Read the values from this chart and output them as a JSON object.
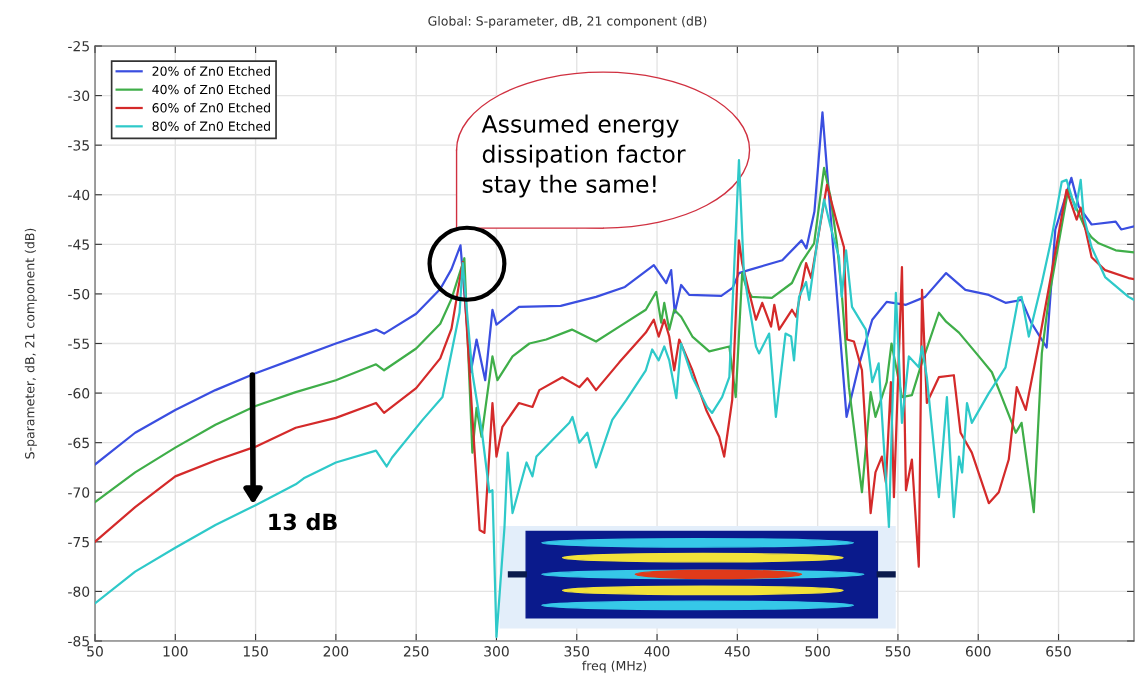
{
  "chart_data": {
    "type": "line",
    "title": "Global: S-parameter, dB, 21 component (dB)",
    "xlabel": "freq (MHz)",
    "ylabel": "S-parameter, dB, 21 component (dB)",
    "xlim": [
      50,
      697
    ],
    "ylim": [
      -85,
      -25
    ],
    "xticks": [
      50,
      100,
      150,
      200,
      250,
      300,
      350,
      400,
      450,
      500,
      550,
      600,
      650
    ],
    "yticks": [
      -85,
      -80,
      -75,
      -70,
      -65,
      -60,
      -55,
      -50,
      -45,
      -40,
      -35,
      -30,
      -25
    ],
    "grid": true,
    "legend": "top left",
    "marker": "none",
    "line_style": "solid",
    "annotations": [
      "Assumed energy\ndissipation factor\nstay the same!",
      {
        "text": "13 dB",
        "x": 150,
        "y": -71.5
      }
    ],
    "series": [
      {
        "name": "20% of Zn0 Etched",
        "color": "#3a4ee0",
        "x": [
          50,
          75,
          100,
          125,
          150,
          175,
          200,
          225,
          230,
          250,
          265,
          272,
          277.6,
          284,
          287.6,
          293,
          297.5,
          300,
          314,
          340,
          362,
          380,
          398,
          405.7,
          408.8,
          411,
          415,
          420,
          440,
          447,
          451,
          457,
          478,
          490,
          493,
          498,
          503,
          518,
          526,
          534,
          543,
          555,
          567,
          580,
          592,
          606.6,
          617,
          627,
          633,
          642.6,
          648,
          658,
          662.6,
          670.6,
          685.6,
          689,
          697
        ],
        "values": [
          -67.2,
          -64,
          -61.7,
          -59.7,
          -58,
          -56.5,
          -55,
          -53.6,
          -54,
          -52,
          -49.5,
          -47.5,
          -45.1,
          -57.9,
          -54.6,
          -58.7,
          -51.6,
          -53.1,
          -51.3,
          -51.2,
          -50.3,
          -49.3,
          -47.1,
          -48.9,
          -47.6,
          -51.9,
          -49.1,
          -50.1,
          -50.2,
          -49.4,
          -47.9,
          -47.6,
          -46.6,
          -44.6,
          -45.4,
          -41.7,
          -31.7,
          -62.4,
          -57,
          -52.6,
          -50.8,
          -51.1,
          -50.3,
          -47.9,
          -49.6,
          -50.1,
          -50.9,
          -50.6,
          -52.9,
          -55.4,
          -43.5,
          -38.3,
          -41.2,
          -43,
          -42.7,
          -43.5,
          -43.2
        ]
      },
      {
        "name": "40% of Zn0 Etched",
        "color": "#3fae49",
        "x": [
          50,
          75,
          100,
          125,
          150,
          175,
          200,
          225,
          230,
          250,
          265,
          272,
          280,
          285,
          287.6,
          290.7,
          297.5,
          300.6,
          310,
          320.5,
          331,
          347,
          362,
          376.5,
          393,
          399.5,
          402.6,
          404.5,
          407.6,
          410.7,
          415,
          422,
          432.5,
          445,
          449,
          453,
          455.5,
          459,
          471.5,
          484,
          489.6,
          497.8,
          504,
          508,
          512,
          515,
          519.5,
          527.6,
          533,
          536,
          543,
          546,
          552.5,
          558.7,
          564,
          575.5,
          580,
          588,
          600.4,
          608.5,
          614.7,
          623.4,
          627,
          634.6,
          639.6,
          644,
          656,
          667,
          670.6,
          675,
          685.6,
          697
        ],
        "values": [
          -71,
          -68,
          -65.5,
          -63.2,
          -61.3,
          -59.9,
          -58.7,
          -57.1,
          -57.7,
          -55.5,
          -53,
          -50.5,
          -46.4,
          -66,
          -61.5,
          -64.4,
          -56.3,
          -58.7,
          -56.3,
          -55,
          -54.6,
          -53.6,
          -54.8,
          -53.3,
          -51.6,
          -49.8,
          -52.9,
          -50.9,
          -53.6,
          -51.6,
          -52.3,
          -54.3,
          -55.8,
          -55.3,
          -60.4,
          -47.9,
          -49.3,
          -50.3,
          -50.4,
          -48.9,
          -46.9,
          -44.9,
          -37.3,
          -40.2,
          -44.9,
          -49.9,
          -59.4,
          -70,
          -59.9,
          -62.4,
          -58.9,
          -55,
          -60.4,
          -60.2,
          -57.4,
          -51.9,
          -52.8,
          -53.9,
          -56.3,
          -57.9,
          -60.4,
          -64,
          -63,
          -72,
          -56,
          -50.4,
          -39.5,
          -43.5,
          -44.3,
          -44.9,
          -45.6,
          -45.8
        ]
      },
      {
        "name": "60% of Zn0 Etched",
        "color": "#d42a2a",
        "x": [
          50,
          75,
          100,
          125,
          150,
          175,
          200,
          225,
          230,
          250,
          265,
          272,
          279,
          285,
          289.5,
          292.5,
          297.5,
          300,
          303.7,
          314,
          322.4,
          326.7,
          341,
          351.6,
          356.6,
          362,
          376.5,
          393,
          398,
          401,
          404.5,
          407.6,
          410.7,
          413.8,
          422,
          430.6,
          438.7,
          441.8,
          446.8,
          451,
          453,
          457,
          461.6,
          465.5,
          471,
          473,
          476,
          484,
          486.6,
          492.8,
          496,
          505.8,
          512,
          516.4,
          518.3,
          522.6,
          527.6,
          533,
          536,
          540,
          542.5,
          545.6,
          547.5,
          552.5,
          555,
          558.7,
          563,
          565,
          568,
          575.5,
          584.8,
          589,
          596,
          606.6,
          612.8,
          619,
          624,
          629.6,
          637.7,
          655,
          661.3,
          663.8,
          670.6,
          679,
          693.6,
          697
        ],
        "values": [
          -75,
          -71.5,
          -68.4,
          -66.8,
          -65.4,
          -63.5,
          -62.5,
          -61,
          -62,
          -59.5,
          -56.5,
          -53.5,
          -46.8,
          -62.4,
          -73.8,
          -74.1,
          -61,
          -66.4,
          -63.4,
          -61,
          -61.4,
          -59.7,
          -58.4,
          -59.4,
          -58.5,
          -59.7,
          -56.9,
          -53.9,
          -52.6,
          -54.3,
          -52.6,
          -54.3,
          -57.7,
          -54.6,
          -57.7,
          -61.7,
          -64.4,
          -66.4,
          -60.7,
          -44.6,
          -46.9,
          -49.6,
          -52.6,
          -50.9,
          -53.3,
          -51.1,
          -53.6,
          -51.6,
          -52.3,
          -46.9,
          -48.4,
          -39,
          -42.8,
          -45.3,
          -54.6,
          -54.8,
          -57.7,
          -72.1,
          -68,
          -66.4,
          -69,
          -58.9,
          -70.5,
          -47.3,
          -69.8,
          -66.7,
          -77.5,
          -49.6,
          -61,
          -58.4,
          -58.2,
          -64,
          -66,
          -71.1,
          -70,
          -66.7,
          -59.4,
          -61.7,
          -55,
          -39.5,
          -42.5,
          -41.3,
          -46.3,
          -47.6,
          -48.4,
          -48.5
        ]
      },
      {
        "name": "80% of Zn0 Etched",
        "color": "#2ec9c9",
        "x": [
          50,
          75,
          100,
          125,
          150,
          175,
          180,
          200,
          225,
          231.6,
          235,
          254,
          266.4,
          277,
          279,
          285,
          291,
          295.6,
          297.5,
          300,
          305,
          307,
          310,
          318.7,
          322.4,
          324.9,
          335,
          345.4,
          347.3,
          351.6,
          356.6,
          362,
          372.1,
          380.8,
          393,
          397,
          401,
          404.5,
          407.6,
          412,
          415,
          422,
          431.2,
          434.3,
          440.5,
          445,
          451,
          454,
          456,
          461.6,
          463.5,
          469.8,
          474,
          480,
          483.5,
          485.3,
          488.4,
          492.8,
          494.7,
          499.6,
          504,
          508,
          513.3,
          515,
          517.7,
          521.4,
          530,
          534,
          538,
          544.4,
          546,
          548.7,
          552.5,
          556.8,
          563,
          565,
          568,
          575.5,
          580.5,
          584.8,
          588,
          590,
          593,
          596,
          606.6,
          617,
          625,
          627,
          631.5,
          639.6,
          645,
          652,
          655,
          660.7,
          663.8,
          665.7,
          670.6,
          679,
          693.6,
          697
        ],
        "values": [
          -81.2,
          -78,
          -75.6,
          -73.3,
          -71.3,
          -69.2,
          -68.6,
          -67,
          -65.8,
          -67.4,
          -66.5,
          -62.7,
          -60.4,
          -51.9,
          -46.9,
          -58,
          -64,
          -70,
          -69.8,
          -84.6,
          -73.5,
          -66,
          -72.1,
          -67,
          -68.4,
          -66.4,
          -64.7,
          -63,
          -62.4,
          -65,
          -64,
          -67.5,
          -62.7,
          -60.7,
          -57.7,
          -55.6,
          -56.7,
          -55.3,
          -56.7,
          -60.5,
          -55,
          -58.4,
          -61.4,
          -62,
          -60.4,
          -58.4,
          -36.5,
          -47.6,
          -49.9,
          -55.3,
          -56,
          -54,
          -62.4,
          -54,
          -54.3,
          -56.7,
          -50.3,
          -48.8,
          -50.6,
          -44.9,
          -40.5,
          -43.2,
          -46.3,
          -50.3,
          -45.6,
          -51.3,
          -53.6,
          -58.9,
          -57,
          -73.5,
          -64.4,
          -49.9,
          -63,
          -56.3,
          -57.4,
          -55.3,
          -58.4,
          -70.5,
          -60.4,
          -72.5,
          -66.4,
          -68,
          -61,
          -63,
          -60,
          -57.4,
          -50.4,
          -50.3,
          -54.3,
          -48.9,
          -44.9,
          -38.7,
          -38.5,
          -41.5,
          -38.5,
          -42.2,
          -45.3,
          -48.3,
          -50.3,
          -50.6
        ]
      }
    ]
  }
}
